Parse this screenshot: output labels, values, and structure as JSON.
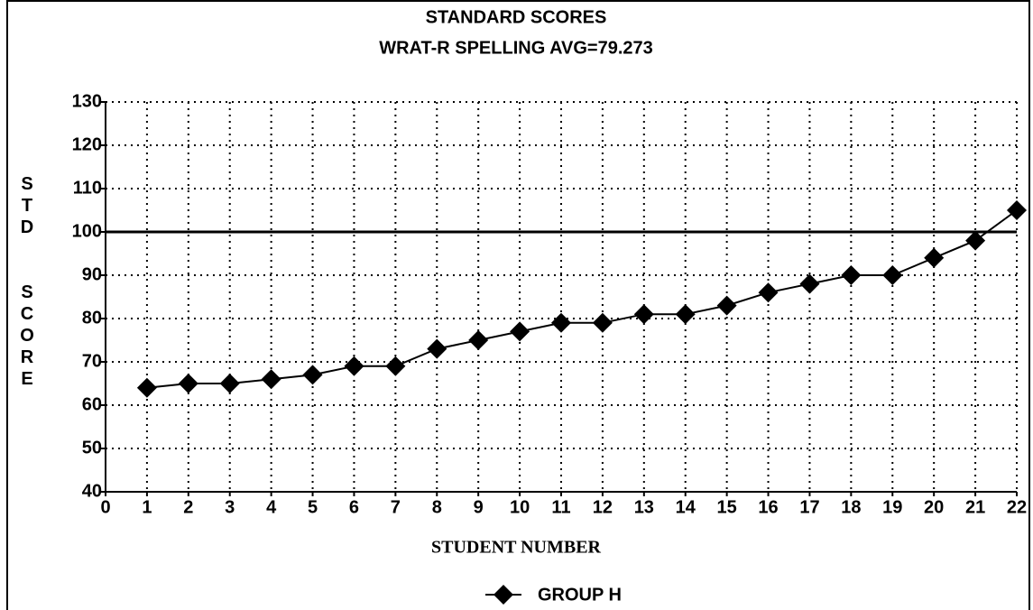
{
  "chart_data": {
    "type": "line",
    "title": "STANDARD SCORES",
    "subtitle": "WRAT-R SPELLING  AVG=79.273",
    "x_label": "STUDENT NUMBER",
    "y_label": "STD  SCORE",
    "x": [
      1,
      2,
      3,
      4,
      5,
      6,
      7,
      8,
      9,
      10,
      11,
      12,
      13,
      14,
      15,
      16,
      17,
      18,
      19,
      20,
      21,
      22
    ],
    "series": [
      {
        "name": "GROUP H",
        "color": "#000000",
        "values": [
          64,
          65,
          65,
          66,
          67,
          69,
          69,
          73,
          75,
          77,
          79,
          79,
          81,
          81,
          83,
          86,
          88,
          90,
          90,
          94,
          98,
          105
        ]
      }
    ],
    "xlim": [
      0,
      22
    ],
    "xticks": [
      0,
      1,
      2,
      3,
      4,
      5,
      6,
      7,
      8,
      9,
      10,
      11,
      12,
      13,
      14,
      15,
      16,
      17,
      18,
      19,
      20,
      21,
      22
    ],
    "ylim": [
      40,
      130
    ],
    "yticks": [
      40,
      50,
      60,
      70,
      80,
      90,
      100,
      110,
      120,
      130
    ],
    "reference_line": 100,
    "grid": true,
    "legend": "bottom"
  }
}
